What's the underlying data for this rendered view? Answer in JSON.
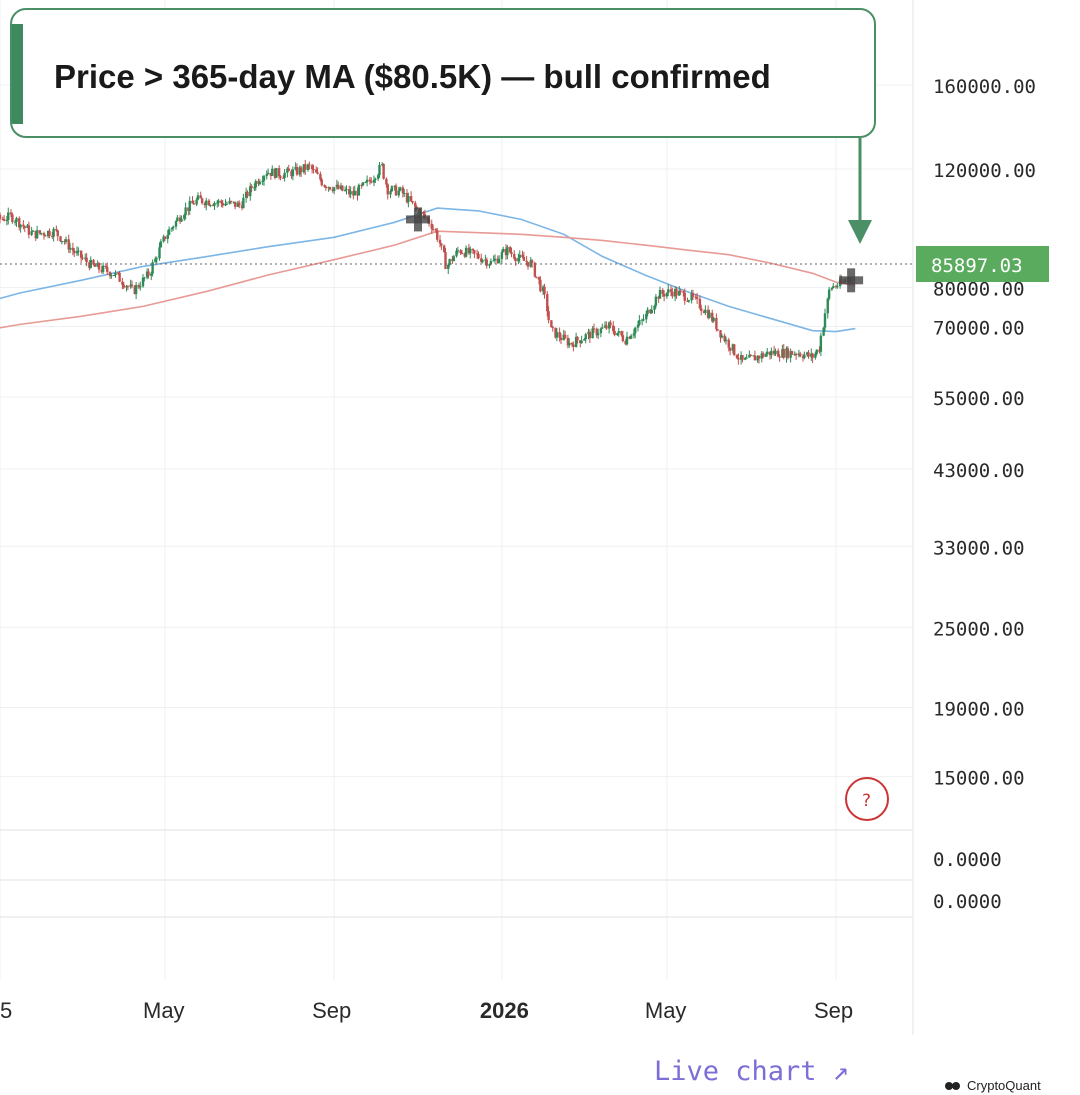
{
  "chart_data": {
    "type": "line",
    "y_scale": "log",
    "y_tick_labels": [
      "160000.00",
      "120000.00",
      "80000.00",
      "70000.00",
      "55000.00",
      "43000.00",
      "33000.00",
      "25000.00",
      "19000.00",
      "15000.00"
    ],
    "y_ticks": [
      160000,
      120000,
      80000,
      70000,
      55000,
      43000,
      33000,
      25000,
      19000,
      15000
    ],
    "lower_pane_labels": [
      "0.0000",
      "0.0000"
    ],
    "x_tick_labels": [
      "5",
      "May",
      "Sep",
      "2026",
      "May",
      "Sep"
    ],
    "x_ticks": [
      "2025-01-01",
      "2025-05-01",
      "2025-09-01",
      "2026-01-01",
      "2026-05-01",
      "2026-09-01"
    ],
    "current_price_label": "85897.03",
    "current_price": 85897.03,
    "grid": true,
    "series": [
      {
        "color": "#2e8b57",
        "style": "candlestick",
        "x": [
          "2024-12-01",
          "2024-12-20",
          "2025-01-10",
          "2025-01-25",
          "2025-02-10",
          "2025-02-25",
          "2025-03-10",
          "2025-03-25",
          "2025-04-08",
          "2025-04-20",
          "2025-05-01",
          "2025-05-15",
          "2025-05-25",
          "2025-06-10",
          "2025-06-25",
          "2025-07-05",
          "2025-07-14",
          "2025-07-25",
          "2025-08-05",
          "2025-08-14",
          "2025-08-25",
          "2025-09-05",
          "2025-09-15",
          "2025-09-25",
          "2025-10-06",
          "2025-10-10",
          "2025-10-20",
          "2025-11-01",
          "2025-11-10",
          "2025-11-15",
          "2025-11-22",
          "2025-12-01",
          "2025-12-15",
          "2025-12-25",
          "2026-01-05",
          "2026-01-15",
          "2026-01-22",
          "2026-02-01",
          "2026-02-06",
          "2026-02-20",
          "2026-03-05",
          "2026-03-20",
          "2026-04-01",
          "2026-04-15",
          "2026-04-25",
          "2026-05-05",
          "2026-05-20",
          "2026-06-01",
          "2026-06-10",
          "2026-06-25",
          "2026-07-05",
          "2026-07-15",
          "2026-07-25",
          "2026-08-05",
          "2026-08-15",
          "2026-08-20",
          "2026-08-28",
          "2026-09-05",
          "2026-09-12"
        ],
        "values": [
          98000,
          100000,
          102000,
          96000,
          97000,
          90000,
          86000,
          84000,
          79000,
          84000,
          95000,
          104000,
          108000,
          107000,
          106000,
          114000,
          119000,
          118000,
          119000,
          121000,
          114000,
          112000,
          110000,
          114000,
          121000,
          112000,
          111000,
          104000,
          100000,
          96000,
          86000,
          91000,
          89000,
          87000,
          91000,
          88000,
          87000,
          78000,
          69000,
          66000,
          68000,
          70000,
          67000,
          72000,
          78000,
          79000,
          77000,
          73000,
          68000,
          62000,
          63000,
          64000,
          64000,
          64000,
          63000,
          65000,
          80000,
          81000,
          83000
        ]
      },
      {
        "color": "#7cb6e6",
        "x": [
          "2024-12-01",
          "2025-01-15",
          "2025-03-01",
          "2025-04-15",
          "2025-06-01",
          "2025-07-15",
          "2025-09-01",
          "2025-10-15",
          "2025-11-15",
          "2025-12-15",
          "2026-01-15",
          "2026-02-15",
          "2026-03-15",
          "2026-04-15",
          "2026-05-15",
          "2026-06-15",
          "2026-07-15",
          "2026-08-15",
          "2026-09-01",
          "2026-09-15"
        ],
        "values": [
          74000,
          78500,
          82000,
          86000,
          89000,
          92000,
          95000,
          100000,
          105000,
          104000,
          101000,
          96000,
          89000,
          83500,
          79000,
          75000,
          72000,
          69000,
          68800,
          69500
        ]
      },
      {
        "color": "#e89a95",
        "x": [
          "2024-12-01",
          "2025-01-15",
          "2025-03-01",
          "2025-04-15",
          "2025-06-01",
          "2025-07-15",
          "2025-09-01",
          "2025-10-15",
          "2025-11-15",
          "2025-12-15",
          "2026-01-15",
          "2026-02-15",
          "2026-03-15",
          "2026-04-15",
          "2026-05-15",
          "2026-06-15",
          "2026-07-15",
          "2026-08-15",
          "2026-09-01",
          "2026-09-15"
        ],
        "values": [
          68000,
          70500,
          72500,
          75000,
          79000,
          83500,
          88000,
          92500,
          97000,
          96500,
          96000,
          95000,
          94000,
          92500,
          91000,
          89500,
          87000,
          84000,
          81500,
          80500
        ]
      }
    ],
    "crossover_markers": [
      {
        "x": "2025-11-01",
        "y": 101000
      },
      {
        "x": "2026-09-12",
        "y": 82000
      }
    ],
    "annotations": [
      "Price > 365-day MA ($80.5K) — bull confirmed",
      "?"
    ]
  },
  "annotation": {
    "text": "Price > 365-day MA ($80.5K) — bull confirmed",
    "accent_color": "#3f8a5c"
  },
  "footer": {
    "live_chart": "Live chart ↗",
    "brand": "CryptoQuant"
  },
  "colors": {
    "up_candle": "#2e8b57",
    "down_candle": "#c0504d",
    "ma_blue": "#7cb6e6",
    "ma_red": "#e89a95",
    "price_tag_bg": "#5aab5e",
    "help_circle": "#cc3333"
  }
}
